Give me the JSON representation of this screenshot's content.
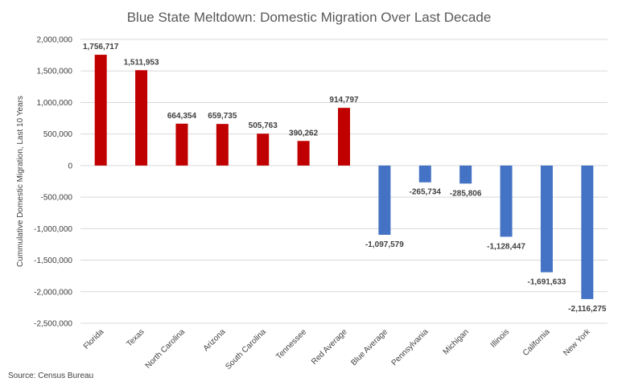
{
  "chart_data": {
    "type": "bar",
    "title": "Blue State Meltdown: Domestic Migration Over Last Decade",
    "ylabel": "Cummulative Domestic Migration, Last 10 Years",
    "xlabel": "",
    "ylim": [
      -2500000,
      2000000
    ],
    "yticks": [
      2000000,
      1500000,
      1000000,
      500000,
      0,
      -500000,
      -1000000,
      -1500000,
      -2000000,
      -2500000
    ],
    "ytick_labels": [
      "2,000,000",
      "1,500,000",
      "1,000,000",
      "500,000",
      "0",
      "-500,000",
      "-1,000,000",
      "-1,500,000",
      "-2,000,000",
      "-2,500,000"
    ],
    "grid": true,
    "categories": [
      "Florida",
      "Texas",
      "North Carolina",
      "Arizona",
      "South Carolina",
      "Tennessee",
      "Red Average",
      "Blue Average",
      "Pennsylvania",
      "Michigan",
      "Illinois",
      "California",
      "New York"
    ],
    "values": [
      1756717,
      1511953,
      664354,
      659735,
      505763,
      390262,
      914797,
      -1097579,
      -265734,
      -285806,
      -1128447,
      -1691633,
      -2116275
    ],
    "data_labels": [
      "1,756,717",
      "1,511,953",
      "664,354",
      "659,735",
      "505,763",
      "390,262",
      "914,797",
      "-1,097,579",
      "-265,734",
      "-285,806",
      "-1,128,447",
      "-1,691,633",
      "-2,116,275"
    ],
    "colors": {
      "positive": "#c00000",
      "negative": "#4472c4"
    },
    "source": "Source: Census Bureau"
  }
}
